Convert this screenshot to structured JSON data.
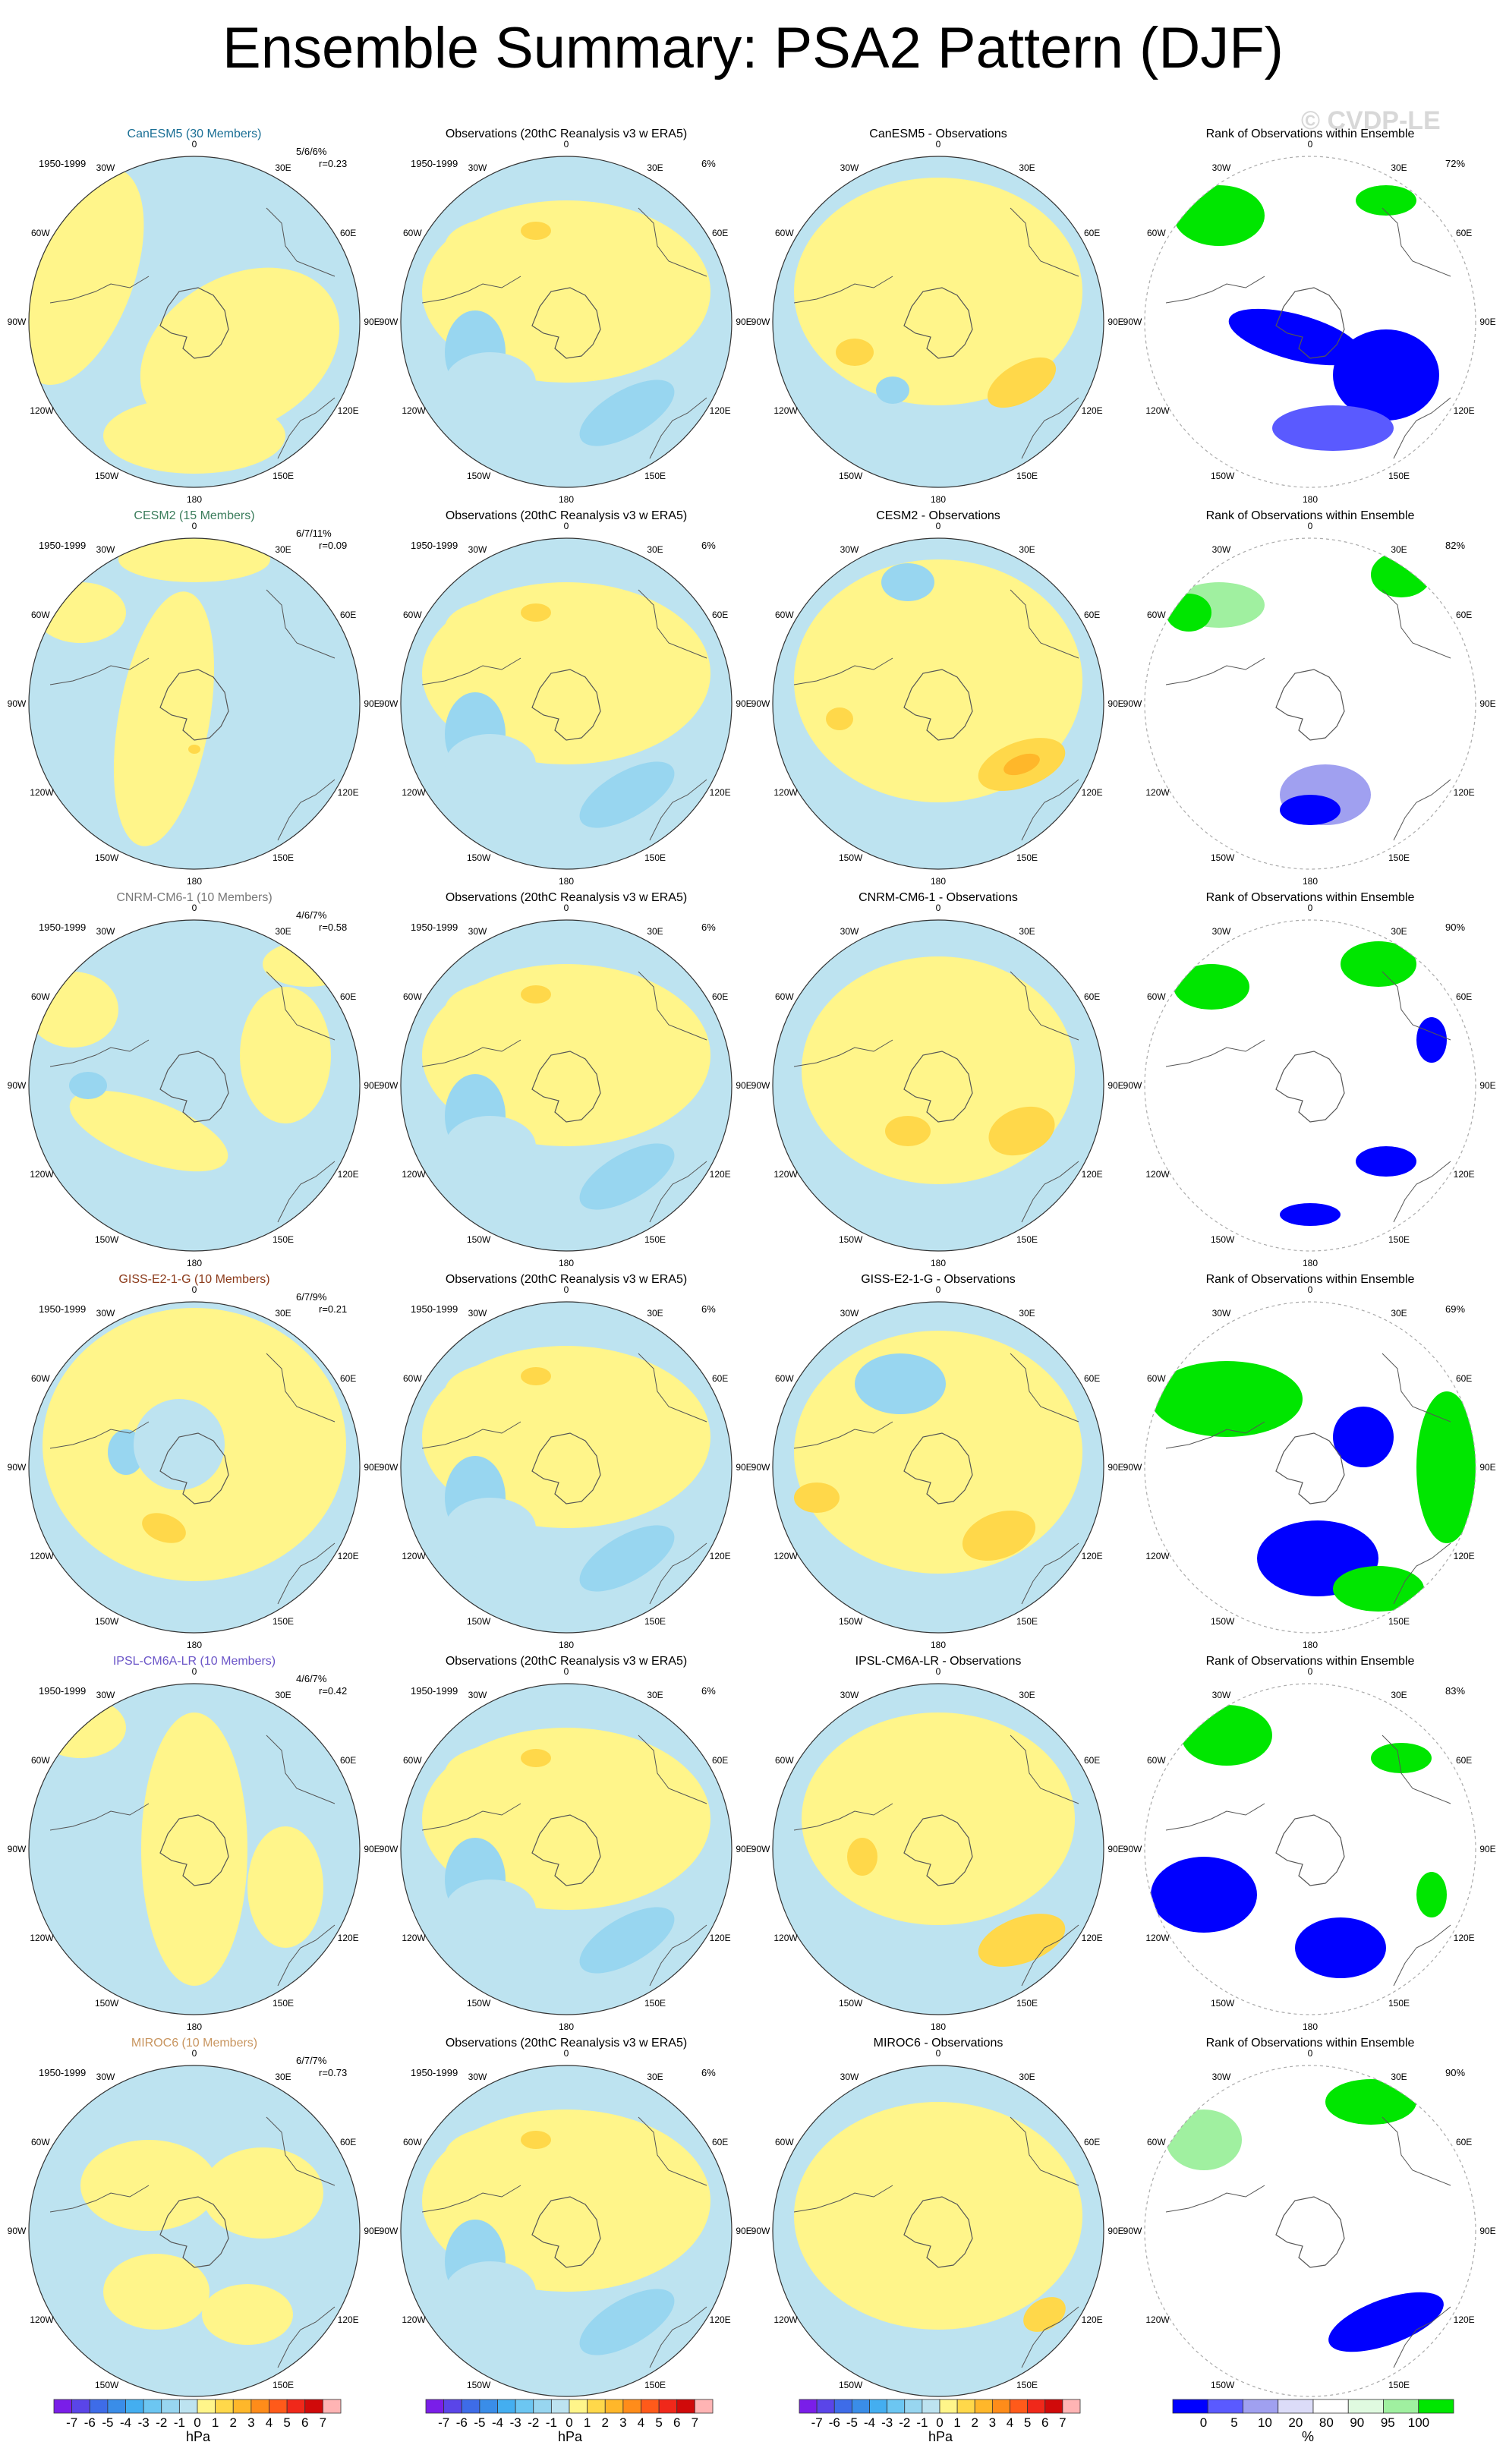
{
  "title": "Ensemble Summary: PSA2 Pattern (DJF)",
  "watermark": "© CVDP-LE",
  "period": "1950-1999",
  "obs_title": "Observations (20thC Reanalysis v3 w ERA5)",
  "obs_pct": "6%",
  "rank_title": "Rank of Observations within Ensemble",
  "lon_labels": [
    "0",
    "30E",
    "60E",
    "90E",
    "120E",
    "150E",
    "180",
    "150W",
    "120W",
    "90W",
    "60W",
    "30W"
  ],
  "rows": [
    {
      "model_title": "CanESM5 (30 Members)",
      "color": "#1a6f95",
      "stats_pct": "5/6/6%",
      "stats_r": "r=0.23",
      "diff_title": "CanESM5 - Observations",
      "rank_pct": "72%"
    },
    {
      "model_title": "CESM2 (15 Members)",
      "color": "#3a7c5b",
      "stats_pct": "6/7/11%",
      "stats_r": "r=0.09",
      "diff_title": "CESM2 - Observations",
      "rank_pct": "82%"
    },
    {
      "model_title": "CNRM-CM6-1 (10 Members)",
      "color": "#777777",
      "stats_pct": "4/6/7%",
      "stats_r": "r=0.58",
      "diff_title": "CNRM-CM6-1 - Observations",
      "rank_pct": "90%"
    },
    {
      "model_title": "GISS-E2-1-G (10 Members)",
      "color": "#8b3a1a",
      "stats_pct": "6/7/9%",
      "stats_r": "r=0.21",
      "diff_title": "GISS-E2-1-G - Observations",
      "rank_pct": "69%"
    },
    {
      "model_title": "IPSL-CM6A-LR (10 Members)",
      "color": "#6b55c8",
      "stats_pct": "4/6/7%",
      "stats_r": "r=0.42",
      "diff_title": "IPSL-CM6A-LR - Observations",
      "rank_pct": "83%"
    },
    {
      "model_title": "MIROC6 (10 Members)",
      "color": "#c8955f",
      "stats_pct": "6/7/7%",
      "stats_r": "r=0.73",
      "diff_title": "MIROC6 - Observations",
      "rank_pct": "90%"
    }
  ],
  "colorbar_hpa": {
    "labels": [
      "-7",
      "-6",
      "-5",
      "-4",
      "-3",
      "-2",
      "-1",
      "0",
      "1",
      "2",
      "3",
      "4",
      "5",
      "6",
      "7"
    ],
    "colors": [
      "#7a1ee8",
      "#5a45e8",
      "#3e6ce8",
      "#3a8de8",
      "#44aef0",
      "#6cc6f2",
      "#98d6f0",
      "#bde3f0",
      "#fff58a",
      "#ffd84a",
      "#ffb72a",
      "#ff8c1a",
      "#ff5a1a",
      "#f0281a",
      "#d00a0a",
      "#ffb4b4"
    ],
    "unit": "hPa"
  },
  "colorbar_rank": {
    "labels": [
      "0",
      "5",
      "10",
      "20",
      "80",
      "90",
      "95",
      "100"
    ],
    "colors": [
      "#0000ff",
      "#5a5aff",
      "#a0a0f0",
      "#dcdcf8",
      "#ffffff",
      "#e0fae0",
      "#a0f0a0",
      "#00e600"
    ],
    "unit": "%"
  },
  "chart_data": {
    "type": "heatmap",
    "title": "Ensemble Summary: PSA2 Pattern (DJF)",
    "panels_per_row": [
      "model ensemble pattern",
      "observations",
      "model minus observations",
      "rank of observations within ensemble"
    ],
    "models": [
      "CanESM5",
      "CESM2",
      "CNRM-CM6-1",
      "GISS-E2-1-G",
      "IPSL-CM6A-LR",
      "MIROC6"
    ],
    "members": [
      30,
      15,
      10,
      10,
      10,
      10
    ],
    "period": "1950-1999",
    "pattern_units": "hPa",
    "pattern_levels": [
      -7,
      -6,
      -5,
      -4,
      -3,
      -2,
      -1,
      0,
      1,
      2,
      3,
      4,
      5,
      6,
      7
    ],
    "rank_units": "%",
    "rank_levels": [
      0,
      5,
      10,
      20,
      80,
      90,
      95,
      100
    ],
    "pattern_correlation_r": [
      0.23,
      0.09,
      0.58,
      0.21,
      0.42,
      0.73
    ],
    "stats_pct": [
      "5/6/6%",
      "6/7/11%",
      "4/6/7%",
      "6/7/9%",
      "4/6/7%",
      "6/7/7%"
    ],
    "rank_area_pct": [
      72,
      82,
      90,
      69,
      83,
      90
    ],
    "obs_pct": 6
  }
}
